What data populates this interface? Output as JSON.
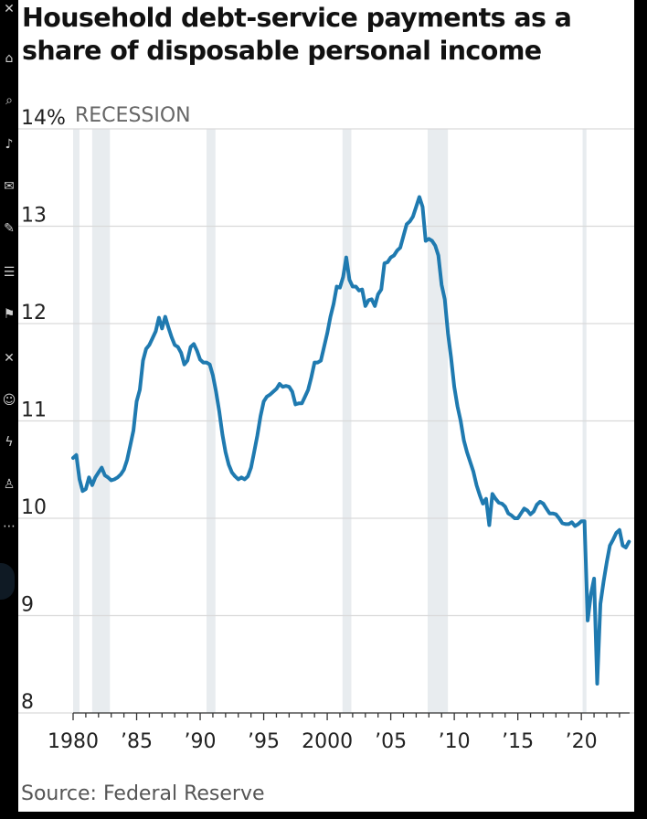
{
  "title": "Household debt-service payments as a share of disposable personal income",
  "source": "Source: Federal Reserve",
  "top_label": "14%",
  "recession_label": "RECESSION",
  "colors": {
    "line": "#1f7ab0",
    "recession": "#e8ecef",
    "grid": "#d9d9d9",
    "background": "#ffffff",
    "page": "#000000"
  },
  "rail_icons": [
    "x-icon",
    "home-icon",
    "search-icon",
    "bell-icon",
    "mail-icon",
    "edit-icon",
    "list-icon",
    "bookmark-icon",
    "x-icon",
    "people-icon",
    "bolt-icon",
    "profile-icon",
    "more-icon"
  ],
  "chart_data": {
    "type": "line",
    "title": "Household debt-service payments as a share of disposable personal income",
    "xlabel": "",
    "ylabel": "",
    "xlim": [
      1980,
      2023.8
    ],
    "ylim": [
      8,
      14
    ],
    "grid": true,
    "y_ticks": [
      8,
      9,
      10,
      11,
      12,
      13
    ],
    "y_tick_labels": [
      "8",
      "9",
      "10",
      "11",
      "12",
      "13"
    ],
    "x_ticks": [
      1980,
      1985,
      1990,
      1995,
      2000,
      2005,
      2010,
      2015,
      2020
    ],
    "x_tick_labels": [
      "1980",
      "’85",
      "’90",
      "’95",
      "2000",
      "’05",
      "’10",
      "’15",
      "’20"
    ],
    "recessions": [
      [
        1980.0,
        1980.5
      ],
      [
        1981.5,
        1982.9
      ],
      [
        1990.5,
        1991.2
      ],
      [
        2001.2,
        2001.9
      ],
      [
        2007.9,
        2009.5
      ],
      [
        2020.1,
        2020.4
      ]
    ],
    "series": [
      {
        "values": [
          [
            1980.0,
            10.62
          ],
          [
            1980.25,
            10.65
          ],
          [
            1980.5,
            10.4
          ],
          [
            1980.75,
            10.28
          ],
          [
            1981.0,
            10.3
          ],
          [
            1981.25,
            10.42
          ],
          [
            1981.5,
            10.34
          ],
          [
            1981.75,
            10.42
          ],
          [
            1982.0,
            10.47
          ],
          [
            1982.25,
            10.52
          ],
          [
            1982.5,
            10.44
          ],
          [
            1982.75,
            10.42
          ],
          [
            1983.0,
            10.39
          ],
          [
            1983.25,
            10.4
          ],
          [
            1983.5,
            10.42
          ],
          [
            1983.75,
            10.45
          ],
          [
            1984.0,
            10.5
          ],
          [
            1984.25,
            10.6
          ],
          [
            1984.5,
            10.75
          ],
          [
            1984.75,
            10.9
          ],
          [
            1985.0,
            11.2
          ],
          [
            1985.25,
            11.32
          ],
          [
            1985.5,
            11.62
          ],
          [
            1985.75,
            11.74
          ],
          [
            1986.0,
            11.78
          ],
          [
            1986.25,
            11.85
          ],
          [
            1986.5,
            11.92
          ],
          [
            1986.75,
            12.06
          ],
          [
            1987.0,
            11.95
          ],
          [
            1987.25,
            12.07
          ],
          [
            1987.5,
            11.96
          ],
          [
            1987.75,
            11.86
          ],
          [
            1988.0,
            11.78
          ],
          [
            1988.25,
            11.76
          ],
          [
            1988.5,
            11.7
          ],
          [
            1988.75,
            11.58
          ],
          [
            1989.0,
            11.62
          ],
          [
            1989.25,
            11.76
          ],
          [
            1989.5,
            11.79
          ],
          [
            1989.75,
            11.72
          ],
          [
            1990.0,
            11.63
          ],
          [
            1990.25,
            11.6
          ],
          [
            1990.5,
            11.6
          ],
          [
            1990.75,
            11.58
          ],
          [
            1991.0,
            11.47
          ],
          [
            1991.25,
            11.3
          ],
          [
            1991.5,
            11.1
          ],
          [
            1991.75,
            10.86
          ],
          [
            1992.0,
            10.68
          ],
          [
            1992.25,
            10.55
          ],
          [
            1992.5,
            10.47
          ],
          [
            1992.75,
            10.43
          ],
          [
            1993.0,
            10.4
          ],
          [
            1993.25,
            10.42
          ],
          [
            1993.5,
            10.4
          ],
          [
            1993.75,
            10.43
          ],
          [
            1994.0,
            10.52
          ],
          [
            1994.25,
            10.68
          ],
          [
            1994.5,
            10.85
          ],
          [
            1994.75,
            11.05
          ],
          [
            1995.0,
            11.2
          ],
          [
            1995.25,
            11.25
          ],
          [
            1995.5,
            11.27
          ],
          [
            1995.75,
            11.3
          ],
          [
            1996.0,
            11.33
          ],
          [
            1996.25,
            11.38
          ],
          [
            1996.5,
            11.35
          ],
          [
            1996.75,
            11.36
          ],
          [
            1997.0,
            11.35
          ],
          [
            1997.25,
            11.3
          ],
          [
            1997.5,
            11.17
          ],
          [
            1997.75,
            11.18
          ],
          [
            1998.0,
            11.18
          ],
          [
            1998.25,
            11.25
          ],
          [
            1998.5,
            11.32
          ],
          [
            1998.75,
            11.45
          ],
          [
            1999.0,
            11.6
          ],
          [
            1999.25,
            11.6
          ],
          [
            1999.5,
            11.62
          ],
          [
            1999.75,
            11.76
          ],
          [
            2000.0,
            11.9
          ],
          [
            2000.25,
            12.07
          ],
          [
            2000.5,
            12.2
          ],
          [
            2000.75,
            12.38
          ],
          [
            2001.0,
            12.37
          ],
          [
            2001.25,
            12.48
          ],
          [
            2001.5,
            12.68
          ],
          [
            2001.75,
            12.45
          ],
          [
            2002.0,
            12.38
          ],
          [
            2002.25,
            12.38
          ],
          [
            2002.5,
            12.34
          ],
          [
            2002.75,
            12.35
          ],
          [
            2003.0,
            12.18
          ],
          [
            2003.25,
            12.24
          ],
          [
            2003.5,
            12.25
          ],
          [
            2003.75,
            12.18
          ],
          [
            2004.0,
            12.3
          ],
          [
            2004.25,
            12.35
          ],
          [
            2004.5,
            12.62
          ],
          [
            2004.75,
            12.63
          ],
          [
            2005.0,
            12.68
          ],
          [
            2005.25,
            12.7
          ],
          [
            2005.5,
            12.75
          ],
          [
            2005.75,
            12.78
          ],
          [
            2006.0,
            12.9
          ],
          [
            2006.25,
            13.02
          ],
          [
            2006.5,
            13.05
          ],
          [
            2006.75,
            13.1
          ],
          [
            2007.0,
            13.2
          ],
          [
            2007.25,
            13.3
          ],
          [
            2007.5,
            13.2
          ],
          [
            2007.75,
            12.85
          ],
          [
            2008.0,
            12.87
          ],
          [
            2008.25,
            12.85
          ],
          [
            2008.5,
            12.8
          ],
          [
            2008.75,
            12.7
          ],
          [
            2009.0,
            12.4
          ],
          [
            2009.25,
            12.25
          ],
          [
            2009.5,
            11.9
          ],
          [
            2009.75,
            11.65
          ],
          [
            2010.0,
            11.35
          ],
          [
            2010.25,
            11.15
          ],
          [
            2010.5,
            11.0
          ],
          [
            2010.75,
            10.8
          ],
          [
            2011.0,
            10.68
          ],
          [
            2011.25,
            10.58
          ],
          [
            2011.5,
            10.48
          ],
          [
            2011.75,
            10.34
          ],
          [
            2012.0,
            10.24
          ],
          [
            2012.25,
            10.15
          ],
          [
            2012.5,
            10.2
          ],
          [
            2012.75,
            9.93
          ],
          [
            2013.0,
            10.25
          ],
          [
            2013.25,
            10.2
          ],
          [
            2013.5,
            10.16
          ],
          [
            2013.75,
            10.15
          ],
          [
            2014.0,
            10.12
          ],
          [
            2014.25,
            10.05
          ],
          [
            2014.5,
            10.03
          ],
          [
            2014.75,
            10.0
          ],
          [
            2015.0,
            10.0
          ],
          [
            2015.25,
            10.05
          ],
          [
            2015.5,
            10.1
          ],
          [
            2015.75,
            10.08
          ],
          [
            2016.0,
            10.04
          ],
          [
            2016.25,
            10.07
          ],
          [
            2016.5,
            10.14
          ],
          [
            2016.75,
            10.17
          ],
          [
            2017.0,
            10.15
          ],
          [
            2017.25,
            10.1
          ],
          [
            2017.5,
            10.05
          ],
          [
            2017.75,
            10.05
          ],
          [
            2018.0,
            10.04
          ],
          [
            2018.25,
            10.0
          ],
          [
            2018.5,
            9.95
          ],
          [
            2018.75,
            9.94
          ],
          [
            2019.0,
            9.94
          ],
          [
            2019.25,
            9.96
          ],
          [
            2019.5,
            9.92
          ],
          [
            2019.75,
            9.94
          ],
          [
            2020.0,
            9.97
          ],
          [
            2020.25,
            9.97
          ],
          [
            2020.5,
            8.95
          ],
          [
            2020.75,
            9.22
          ],
          [
            2021.0,
            9.38
          ],
          [
            2021.25,
            8.3
          ],
          [
            2021.5,
            9.12
          ],
          [
            2021.75,
            9.35
          ],
          [
            2022.0,
            9.55
          ],
          [
            2022.25,
            9.72
          ],
          [
            2022.5,
            9.78
          ],
          [
            2022.75,
            9.85
          ],
          [
            2023.0,
            9.88
          ],
          [
            2023.25,
            9.72
          ],
          [
            2023.5,
            9.7
          ],
          [
            2023.75,
            9.76
          ]
        ]
      }
    ]
  }
}
